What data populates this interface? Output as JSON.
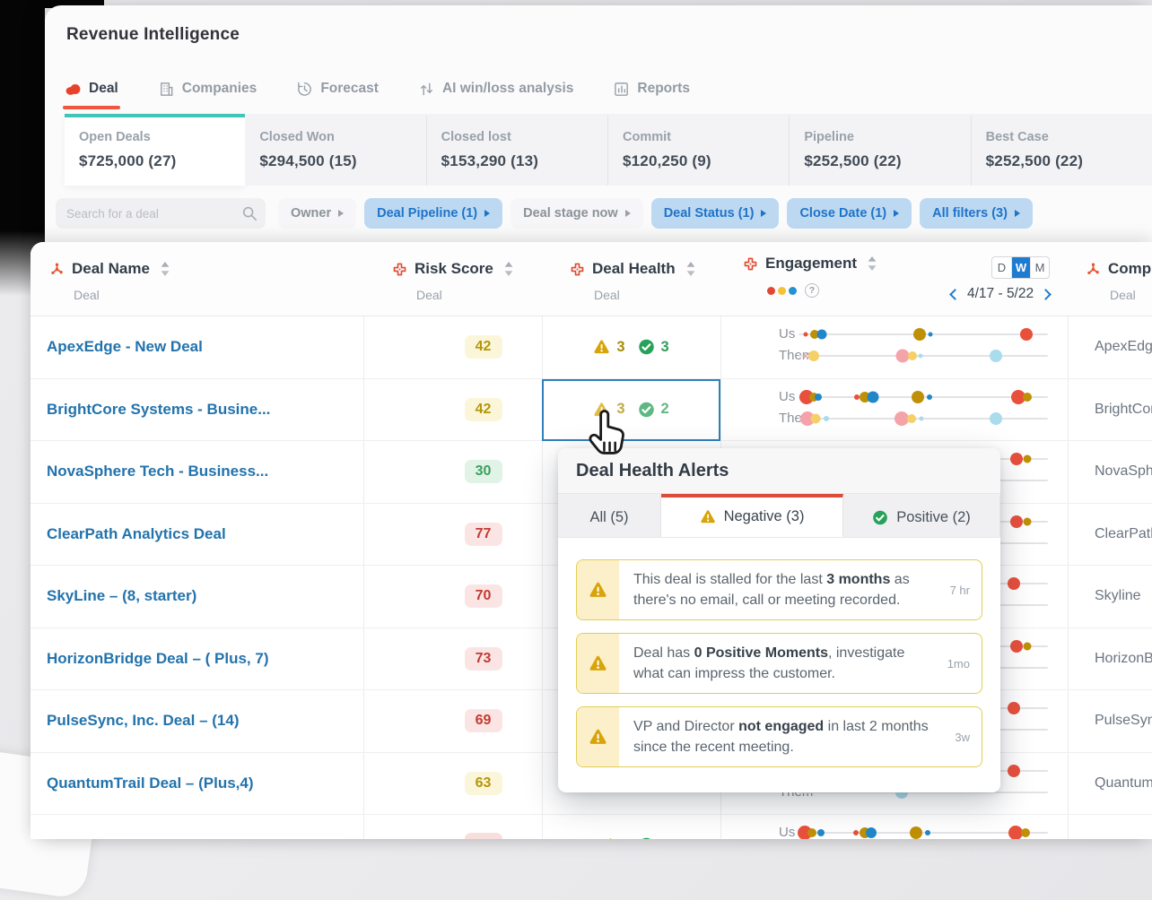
{
  "app": {
    "title": "Revenue Intelligence"
  },
  "colors": {
    "accent_red": "#f0573f",
    "teal_bar": "#41c5b8",
    "link_blue": "#2273ac",
    "filter_active_bg": "#bdd9f2",
    "filter_active_text": "#1e73c9",
    "selected_cell_border": "#2f80b9",
    "period_active_bg": "#1f7bd0",
    "warning_yellow": "#d9a40a",
    "positive_green": "#28a15b",
    "dots": {
      "red": "#e8503c",
      "olive": "#bf9005",
      "blue": "#2088c9",
      "pink": "#f4a3a8",
      "yellow": "#f5cf67",
      "lblue": "#a9dced"
    },
    "risk": {
      "yellow_bg": "#fbf6d9",
      "yellow_text": "#b5950a",
      "green_bg": "#e1f3e6",
      "green_text": "#3aa060",
      "red_bg": "#fbe5e4",
      "red_text": "#c13b33"
    }
  },
  "nav": {
    "tabs": [
      {
        "label": "Deal",
        "icon": "deal-blob",
        "active": true
      },
      {
        "label": "Companies",
        "icon": "buildings",
        "active": false
      },
      {
        "label": "Forecast",
        "icon": "forecast-clock",
        "active": false
      },
      {
        "label": "AI win/loss analysis",
        "icon": "win-loss-arrows",
        "active": false
      },
      {
        "label": "Reports",
        "icon": "report-chart",
        "active": false
      }
    ]
  },
  "summary": {
    "cards": [
      {
        "label": "Open Deals",
        "value": "$725,000 (27)",
        "active": true
      },
      {
        "label": "Closed Won",
        "value": "$294,500 (15)",
        "active": false
      },
      {
        "label": "Closed lost",
        "value": "$153,290 (13)",
        "active": false
      },
      {
        "label": "Commit",
        "value": "$120,250 (9)",
        "active": false
      },
      {
        "label": "Pipeline",
        "value": "$252,500 (22)",
        "active": false
      },
      {
        "label": "Best Case",
        "value": "$252,500 (22)",
        "active": false
      }
    ]
  },
  "filters": {
    "search_placeholder": "Search for a deal",
    "chips": [
      {
        "label": "Owner",
        "active": false
      },
      {
        "label": "Deal Pipeline (1)",
        "active": true
      },
      {
        "label": "Deal stage now",
        "active": false
      },
      {
        "label": "Deal Status (1)",
        "active": true
      },
      {
        "label": "Close Date (1)",
        "active": true
      },
      {
        "label": "All filters (3)",
        "active": true
      }
    ]
  },
  "table": {
    "columns": {
      "deal_name": {
        "label": "Deal Name",
        "sub": "Deal"
      },
      "risk_score": {
        "label": "Risk Score",
        "sub": "Deal"
      },
      "deal_health": {
        "label": "Deal Health",
        "sub": "Deal"
      },
      "engagement": {
        "label": "Engagement",
        "period_options": [
          "D",
          "W",
          "M"
        ],
        "period_active": "W",
        "date_range": "4/17 - 5/22",
        "row_labels": [
          "Us",
          "Them"
        ],
        "help_icon": "?"
      },
      "company": {
        "label": "Comp",
        "sub": "Deal"
      }
    },
    "rows": [
      {
        "deal_name": "ApexEdge - New Deal",
        "risk": "42",
        "risk_level": "yellow",
        "health": {
          "neg": "3",
          "pos": "3"
        },
        "selected": false,
        "company": "ApexEdge",
        "us": [
          {
            "p": 0.029,
            "c": "red",
            "r": 2.5
          },
          {
            "p": 0.065,
            "c": "olive",
            "r": 5
          },
          {
            "p": 0.094,
            "c": "blue",
            "r": 5.5
          },
          {
            "p": 0.486,
            "c": "olive",
            "r": 7
          },
          {
            "p": 0.529,
            "c": "blue",
            "r": 2.5
          },
          {
            "p": 0.914,
            "c": "red",
            "r": 7
          }
        ],
        "them": [
          {
            "p": 0.025,
            "c": "pink",
            "r": 2
          },
          {
            "p": 0.061,
            "c": "yellow",
            "r": 6
          },
          {
            "p": 0.417,
            "c": "pink",
            "r": 7.5
          },
          {
            "p": 0.457,
            "c": "yellow",
            "r": 5
          },
          {
            "p": 0.489,
            "c": "lblue",
            "r": 2.5
          },
          {
            "p": 0.791,
            "c": "lblue",
            "r": 7
          }
        ]
      },
      {
        "deal_name": "BrightCore Systems - Busine...",
        "risk": "42",
        "risk_level": "yellow",
        "health": {
          "neg": "3",
          "pos": "2"
        },
        "selected": true,
        "company": "BrightCore",
        "us": [
          {
            "p": 0.032,
            "c": "red",
            "r": 8
          },
          {
            "p": 0.061,
            "c": "olive",
            "r": 5
          },
          {
            "p": 0.079,
            "c": "blue",
            "r": 4
          },
          {
            "p": 0.234,
            "c": "red",
            "r": 3
          },
          {
            "p": 0.266,
            "c": "olive",
            "r": 6
          },
          {
            "p": 0.299,
            "c": "blue",
            "r": 6.5
          },
          {
            "p": 0.478,
            "c": "olive",
            "r": 7
          },
          {
            "p": 0.525,
            "c": "blue",
            "r": 3
          },
          {
            "p": 0.881,
            "c": "red",
            "r": 8
          },
          {
            "p": 0.917,
            "c": "olive",
            "r": 5
          }
        ],
        "them": [
          {
            "p": 0.036,
            "c": "pink",
            "r": 8
          },
          {
            "p": 0.068,
            "c": "yellow",
            "r": 5.5
          },
          {
            "p": 0.112,
            "c": "lblue",
            "r": 3
          },
          {
            "p": 0.414,
            "c": "pink",
            "r": 8
          },
          {
            "p": 0.453,
            "c": "yellow",
            "r": 5
          },
          {
            "p": 0.493,
            "c": "lblue",
            "r": 2.5
          },
          {
            "p": 0.791,
            "c": "lblue",
            "r": 7
          }
        ]
      },
      {
        "deal_name": "NovaSphere Tech - Business...",
        "risk": "30",
        "risk_level": "green",
        "health": null,
        "selected": false,
        "company": "NovaSphere",
        "us": [
          {
            "p": 0.874,
            "c": "red",
            "r": 7
          },
          {
            "p": 0.917,
            "c": "olive",
            "r": 4.5
          }
        ],
        "them": []
      },
      {
        "deal_name": "ClearPath Analytics Deal",
        "risk": "77",
        "risk_level": "red",
        "health": null,
        "selected": false,
        "company": "ClearPath",
        "us": [
          {
            "p": 0.874,
            "c": "red",
            "r": 7
          },
          {
            "p": 0.917,
            "c": "olive",
            "r": 4.5
          }
        ],
        "them": []
      },
      {
        "deal_name": "SkyLine – (8, starter)",
        "risk": "70",
        "risk_level": "red",
        "health": null,
        "selected": false,
        "company": "Skyline",
        "us": [
          {
            "p": 0.863,
            "c": "red",
            "r": 7
          }
        ],
        "them": []
      },
      {
        "deal_name": "HorizonBridge Deal – ( Plus, 7)",
        "risk": "73",
        "risk_level": "red",
        "health": null,
        "selected": false,
        "company": "HorizonBridge",
        "us": [
          {
            "p": 0.874,
            "c": "red",
            "r": 7
          },
          {
            "p": 0.917,
            "c": "olive",
            "r": 4.5
          }
        ],
        "them": []
      },
      {
        "deal_name": "PulseSync, Inc. Deal – (14)",
        "risk": "69",
        "risk_level": "red",
        "health": null,
        "selected": false,
        "company": "PulseSync",
        "us": [
          {
            "p": 0.863,
            "c": "red",
            "r": 7
          }
        ],
        "them": []
      },
      {
        "deal_name": "QuantumTrail Deal – (Plus,4)",
        "risk": "63",
        "risk_level": "yellow",
        "health": null,
        "selected": false,
        "company": "QuantumTrail",
        "us": [
          {
            "p": 0.863,
            "c": "red",
            "r": 7
          }
        ],
        "them": [
          {
            "p": 0.414,
            "c": "lblue",
            "r": 7
          }
        ]
      },
      {
        "deal_name": "",
        "risk": "",
        "risk_level": "pink",
        "health": {
          "neg": "",
          "pos": ""
        },
        "selected": false,
        "company": "",
        "us": [
          {
            "p": 0.025,
            "c": "red",
            "r": 8
          },
          {
            "p": 0.054,
            "c": "olive",
            "r": 5
          },
          {
            "p": 0.09,
            "c": "blue",
            "r": 4
          },
          {
            "p": 0.23,
            "c": "red",
            "r": 3
          },
          {
            "p": 0.266,
            "c": "olive",
            "r": 6
          },
          {
            "p": 0.291,
            "c": "blue",
            "r": 6
          },
          {
            "p": 0.471,
            "c": "olive",
            "r": 7
          },
          {
            "p": 0.518,
            "c": "blue",
            "r": 3
          },
          {
            "p": 0.871,
            "c": "red",
            "r": 8
          },
          {
            "p": 0.91,
            "c": "olive",
            "r": 5
          }
        ],
        "them": []
      }
    ]
  },
  "popup": {
    "title": "Deal Health Alerts",
    "tabs": [
      {
        "label": "All (5)",
        "icon": null,
        "active": false
      },
      {
        "label": "Negative (3)",
        "icon": "warning",
        "active": true
      },
      {
        "label": "Positive (2)",
        "icon": "check",
        "active": false
      }
    ],
    "alerts": [
      {
        "pre": "This deal is stalled for the last ",
        "bold": "3 months",
        "post": " as there's no email, call or meeting recorded.",
        "time": "7 hr"
      },
      {
        "pre": "Deal has ",
        "bold": "0 Positive Moments",
        "post": ", investigate what can impress the customer.",
        "time": "1mo"
      },
      {
        "pre": "VP and Director ",
        "bold": "not engaged",
        "post": " in last 2 months since the recent meeting.",
        "time": "3w"
      }
    ]
  }
}
